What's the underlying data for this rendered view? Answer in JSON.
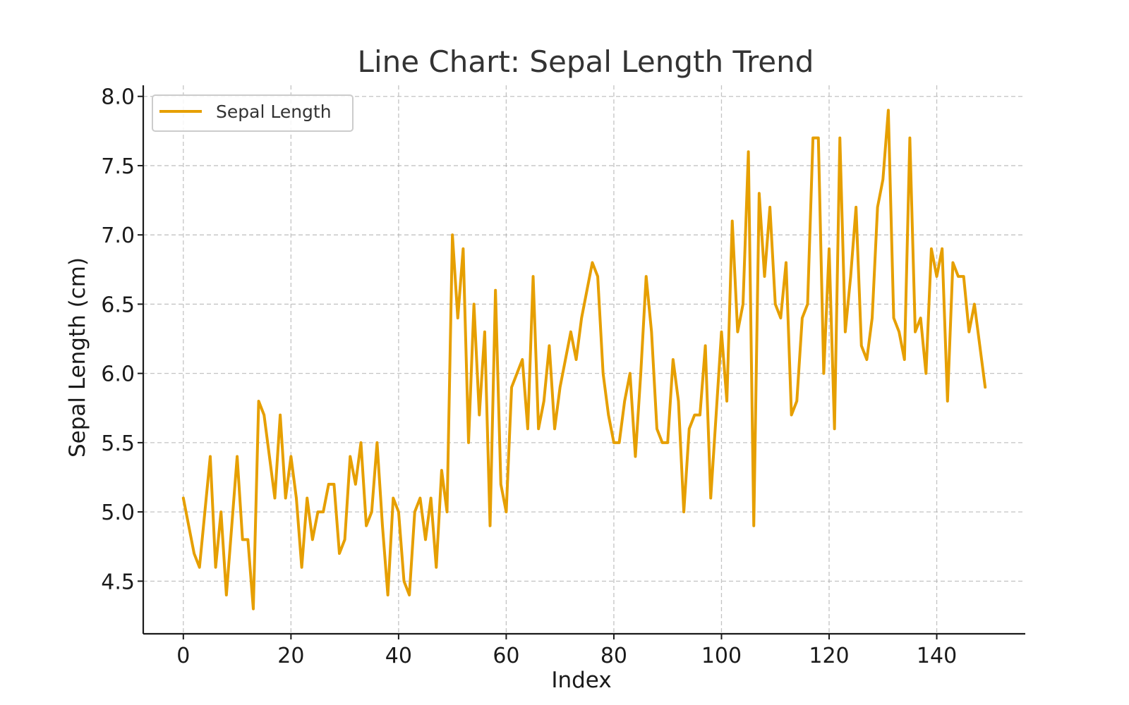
{
  "chart_data": {
    "type": "line",
    "title": "Line Chart: Sepal Length Trend",
    "xlabel": "Index",
    "ylabel": "Sepal Length (cm)",
    "xlim": [
      -7.45,
      156.45
    ],
    "ylim": [
      4.12,
      8.08
    ],
    "xticks": [
      0,
      20,
      40,
      60,
      80,
      100,
      120,
      140
    ],
    "yticks": [
      4.5,
      5.0,
      5.5,
      6.0,
      6.5,
      7.0,
      7.5,
      8.0
    ],
    "xtick_labels": [
      "0",
      "20",
      "40",
      "60",
      "80",
      "100",
      "120",
      "140"
    ],
    "ytick_labels": [
      "4.5",
      "5.0",
      "5.5",
      "6.0",
      "6.5",
      "7.0",
      "7.5",
      "8.0"
    ],
    "grid": true,
    "legend_position": "top-left",
    "series": [
      {
        "name": "Sepal Length",
        "color": "#E69F00",
        "values": [
          5.1,
          4.9,
          4.7,
          4.6,
          5.0,
          5.4,
          4.6,
          5.0,
          4.4,
          4.9,
          5.4,
          4.8,
          4.8,
          4.3,
          5.8,
          5.7,
          5.4,
          5.1,
          5.7,
          5.1,
          5.4,
          5.1,
          4.6,
          5.1,
          4.8,
          5.0,
          5.0,
          5.2,
          5.2,
          4.7,
          4.8,
          5.4,
          5.2,
          5.5,
          4.9,
          5.0,
          5.5,
          4.9,
          4.4,
          5.1,
          5.0,
          4.5,
          4.4,
          5.0,
          5.1,
          4.8,
          5.1,
          4.6,
          5.3,
          5.0,
          7.0,
          6.4,
          6.9,
          5.5,
          6.5,
          5.7,
          6.3,
          4.9,
          6.6,
          5.2,
          5.0,
          5.9,
          6.0,
          6.1,
          5.6,
          6.7,
          5.6,
          5.8,
          6.2,
          5.6,
          5.9,
          6.1,
          6.3,
          6.1,
          6.4,
          6.6,
          6.8,
          6.7,
          6.0,
          5.7,
          5.5,
          5.5,
          5.8,
          6.0,
          5.4,
          6.0,
          6.7,
          6.3,
          5.6,
          5.5,
          5.5,
          6.1,
          5.8,
          5.0,
          5.6,
          5.7,
          5.7,
          6.2,
          5.1,
          5.7,
          6.3,
          5.8,
          7.1,
          6.3,
          6.5,
          7.6,
          4.9,
          7.3,
          6.7,
          7.2,
          6.5,
          6.4,
          6.8,
          5.7,
          5.8,
          6.4,
          6.5,
          7.7,
          7.7,
          6.0,
          6.9,
          5.6,
          7.7,
          6.3,
          6.7,
          7.2,
          6.2,
          6.1,
          6.4,
          7.2,
          7.4,
          7.9,
          6.4,
          6.3,
          6.1,
          7.7,
          6.3,
          6.4,
          6.0,
          6.9,
          6.7,
          6.9,
          5.8,
          6.8,
          6.7,
          6.7,
          6.3,
          6.5,
          6.2,
          5.9
        ]
      }
    ]
  }
}
